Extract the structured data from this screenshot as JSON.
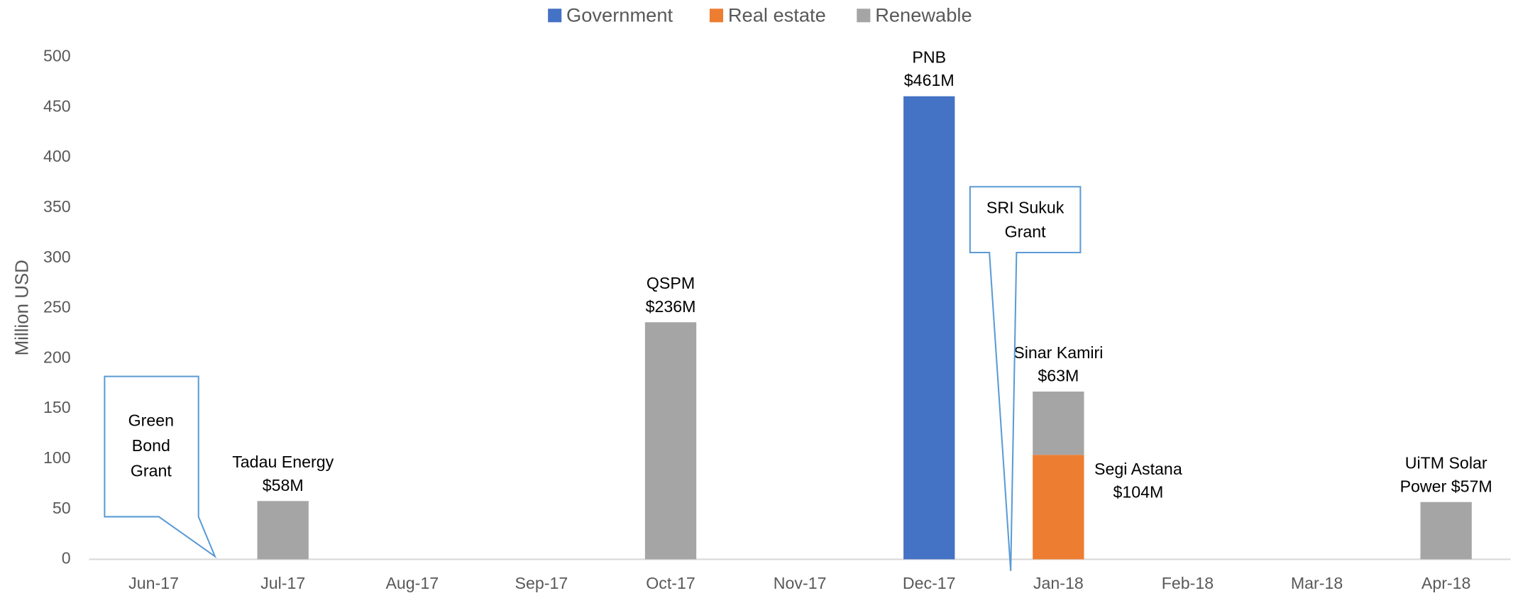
{
  "chart_data": {
    "type": "bar",
    "stacked": true,
    "ylabel": "Million USD",
    "categories": [
      "Jun-17",
      "Jul-17",
      "Aug-17",
      "Sep-17",
      "Oct-17",
      "Nov-17",
      "Dec-17",
      "Jan-18",
      "Feb-18",
      "Mar-18",
      "Apr-18"
    ],
    "series": [
      {
        "name": "Government",
        "color": "#4472c4",
        "values": [
          null,
          null,
          null,
          null,
          null,
          null,
          461,
          null,
          null,
          null,
          null
        ],
        "value_labels": [
          null,
          null,
          null,
          null,
          null,
          null,
          [
            "PNB",
            "$461M"
          ],
          null,
          null,
          null,
          null
        ]
      },
      {
        "name": "Real estate",
        "color": "#ed7d31",
        "values": [
          null,
          null,
          null,
          null,
          null,
          null,
          null,
          104,
          null,
          null,
          null
        ],
        "value_labels": [
          null,
          null,
          null,
          null,
          null,
          null,
          null,
          [
            "Segi Astana",
            "$104M"
          ],
          null,
          null,
          null
        ]
      },
      {
        "name": "Renewable",
        "color": "#a5a5a5",
        "values": [
          null,
          58,
          null,
          null,
          236,
          null,
          null,
          63,
          null,
          null,
          57
        ],
        "value_labels": [
          null,
          [
            "Tadau Energy",
            "$58M"
          ],
          null,
          null,
          [
            "QSPM",
            "$236M"
          ],
          null,
          null,
          [
            "Sinar Kamiri",
            "$63M"
          ],
          null,
          null,
          [
            "UiTM Solar",
            "Power $57M"
          ]
        ]
      }
    ],
    "ylim": [
      0,
      500
    ],
    "yticks": [
      0,
      50,
      100,
      150,
      200,
      250,
      300,
      350,
      400,
      450,
      500
    ],
    "legend": "top",
    "annotations": [
      {
        "text": [
          "Green",
          "Bond",
          "Grant"
        ]
      },
      {
        "text": [
          "SRI Sukuk",
          "Grant"
        ]
      }
    ]
  }
}
